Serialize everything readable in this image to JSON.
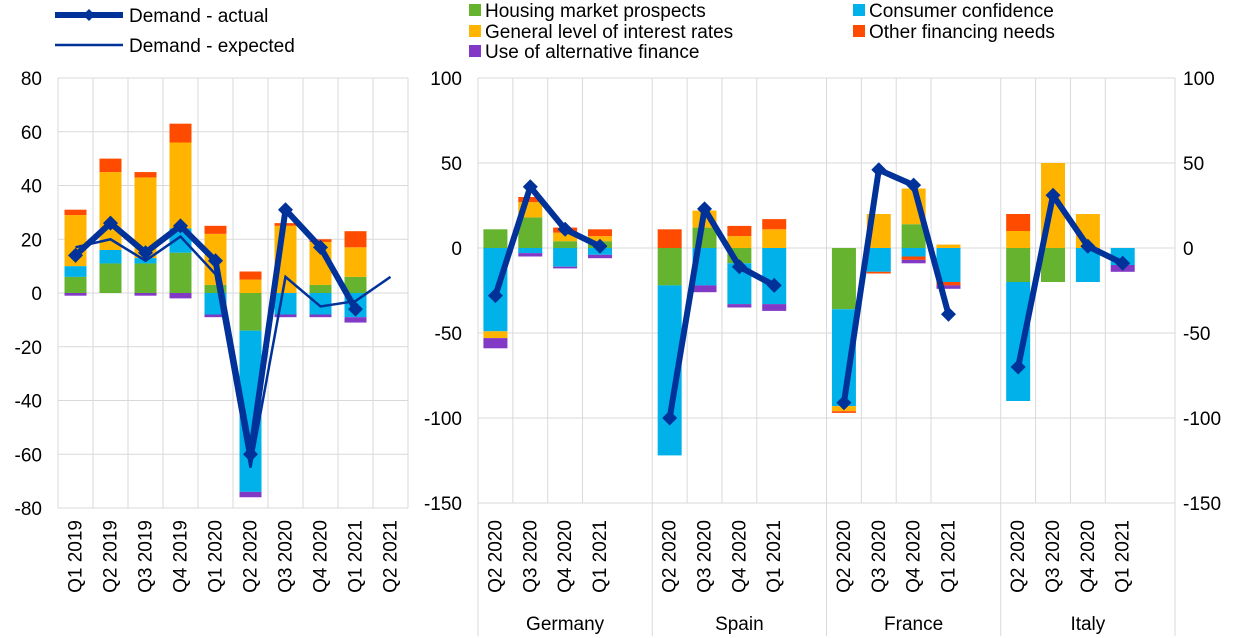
{
  "legend": {
    "left": [
      {
        "label": "Demand - actual",
        "style": "thick-line-diamond"
      },
      {
        "label": "Demand - expected",
        "style": "thin-line"
      }
    ],
    "right": [
      {
        "label": "Housing market prospects",
        "color": "#65B32E"
      },
      {
        "label": "Consumer confidence",
        "color": "#00B1EA"
      },
      {
        "label": "General level of interest rates",
        "color": "#FFB400"
      },
      {
        "label": "Other financing needs",
        "color": "#FF4B00"
      },
      {
        "label": "Use of alternative finance",
        "color": "#8139C6"
      }
    ]
  },
  "colors": {
    "housing": "#65B32E",
    "consumer": "#00B1EA",
    "interest": "#FFB400",
    "other": "#FF4B00",
    "alt": "#8139C6",
    "actual": "#003299",
    "expected": "#003299",
    "grid": "#d9d9d9"
  },
  "chart_data": [
    {
      "type": "bar",
      "stacked": true,
      "title": "",
      "categories": [
        "Q1 2019",
        "Q2 2019",
        "Q3 2019",
        "Q4 2019",
        "Q1 2020",
        "Q2 2020",
        "Q3 2020",
        "Q4 2020",
        "Q1 2021",
        "Q2 2021"
      ],
      "ylim": [
        -80,
        80
      ],
      "yticks": [
        80,
        60,
        40,
        20,
        0,
        -20,
        -40,
        -60,
        -80
      ],
      "grid": true,
      "series": [
        {
          "name": "Housing market prospects",
          "key": "housing",
          "values": [
            6,
            11,
            11,
            15,
            3,
            -14,
            0,
            3,
            6,
            null
          ]
        },
        {
          "name": "Consumer confidence",
          "key": "consumer",
          "values": [
            4,
            5,
            2,
            9,
            -8,
            -60,
            -8,
            -8,
            -9,
            null
          ]
        },
        {
          "name": "General level of interest rates",
          "key": "interest",
          "values": [
            19,
            29,
            30,
            32,
            19,
            5,
            25,
            16,
            11,
            null
          ]
        },
        {
          "name": "Other financing needs",
          "key": "other",
          "values": [
            2,
            5,
            2,
            7,
            3,
            3,
            1,
            1,
            6,
            null
          ]
        },
        {
          "name": "Use of alternative finance",
          "key": "alt",
          "values": [
            -1,
            0,
            -1,
            -2,
            -1,
            -2,
            -1,
            -1,
            -2,
            null
          ]
        },
        {
          "name": "Demand - actual",
          "key": "actual",
          "type": "line",
          "values": [
            14,
            26,
            15,
            25,
            12,
            -60,
            31,
            17,
            -6,
            null
          ]
        },
        {
          "name": "Demand - expected",
          "key": "expected",
          "type": "line",
          "values": [
            17,
            20,
            12,
            21,
            7,
            -65,
            6,
            -5,
            -3,
            6
          ]
        }
      ]
    },
    {
      "type": "bar",
      "stacked": true,
      "title": "",
      "groups": [
        {
          "name": "Germany",
          "categories": [
            "Q2 2020",
            "Q3 2020",
            "Q4 2020",
            "Q1 2021"
          ]
        },
        {
          "name": "Spain",
          "categories": [
            "Q2 2020",
            "Q3 2020",
            "Q4 2020",
            "Q1 2021"
          ]
        },
        {
          "name": "France",
          "categories": [
            "Q2 2020",
            "Q3 2020",
            "Q4 2020",
            "Q1 2021"
          ]
        },
        {
          "name": "Italy",
          "categories": [
            "Q2 2020",
            "Q3 2020",
            "Q4 2020",
            "Q1 2021"
          ]
        }
      ],
      "ylim": [
        -150,
        100
      ],
      "yticks": [
        100,
        50,
        0,
        -50,
        -100,
        -150
      ],
      "grid": true,
      "series": [
        {
          "name": "Housing market prospects",
          "key": "housing",
          "values": [
            [
              11,
              18,
              4,
              4
            ],
            [
              -22,
              12,
              -9,
              0
            ],
            [
              -36,
              0,
              14,
              0
            ],
            [
              -20,
              -20,
              0,
              0
            ]
          ]
        },
        {
          "name": "Consumer confidence",
          "key": "consumer",
          "values": [
            [
              -49,
              -3,
              -11,
              -4
            ],
            [
              -100,
              -22,
              -24,
              -33
            ],
            [
              -57,
              -14,
              -5,
              -20
            ],
            [
              -70,
              0,
              -20,
              -10
            ]
          ]
        },
        {
          "name": "General level of interest rates",
          "key": "interest",
          "values": [
            [
              -4,
              9,
              5,
              3
            ],
            [
              0,
              10,
              7,
              11
            ],
            [
              -3,
              20,
              21,
              2
            ],
            [
              10,
              50,
              20,
              0
            ]
          ]
        },
        {
          "name": "Other financing needs",
          "key": "other",
          "values": [
            [
              0,
              3,
              3,
              4
            ],
            [
              11,
              0,
              6,
              6
            ],
            [
              -1,
              -1,
              -2,
              -2
            ],
            [
              10,
              0,
              0,
              0
            ]
          ]
        },
        {
          "name": "Use of alternative finance",
          "key": "alt",
          "values": [
            [
              -6,
              -2,
              -1,
              -2
            ],
            [
              0,
              -4,
              -2,
              -4
            ],
            [
              0,
              0,
              -2,
              -2
            ],
            [
              0,
              0,
              0,
              -4
            ]
          ]
        },
        {
          "name": "Demand - actual",
          "key": "actual",
          "type": "line",
          "values": [
            [
              -28,
              36,
              11,
              1
            ],
            [
              -100,
              23,
              -11,
              -22
            ],
            [
              -91,
              46,
              37,
              -39
            ],
            [
              -70,
              31,
              1,
              -9
            ]
          ]
        }
      ]
    }
  ]
}
